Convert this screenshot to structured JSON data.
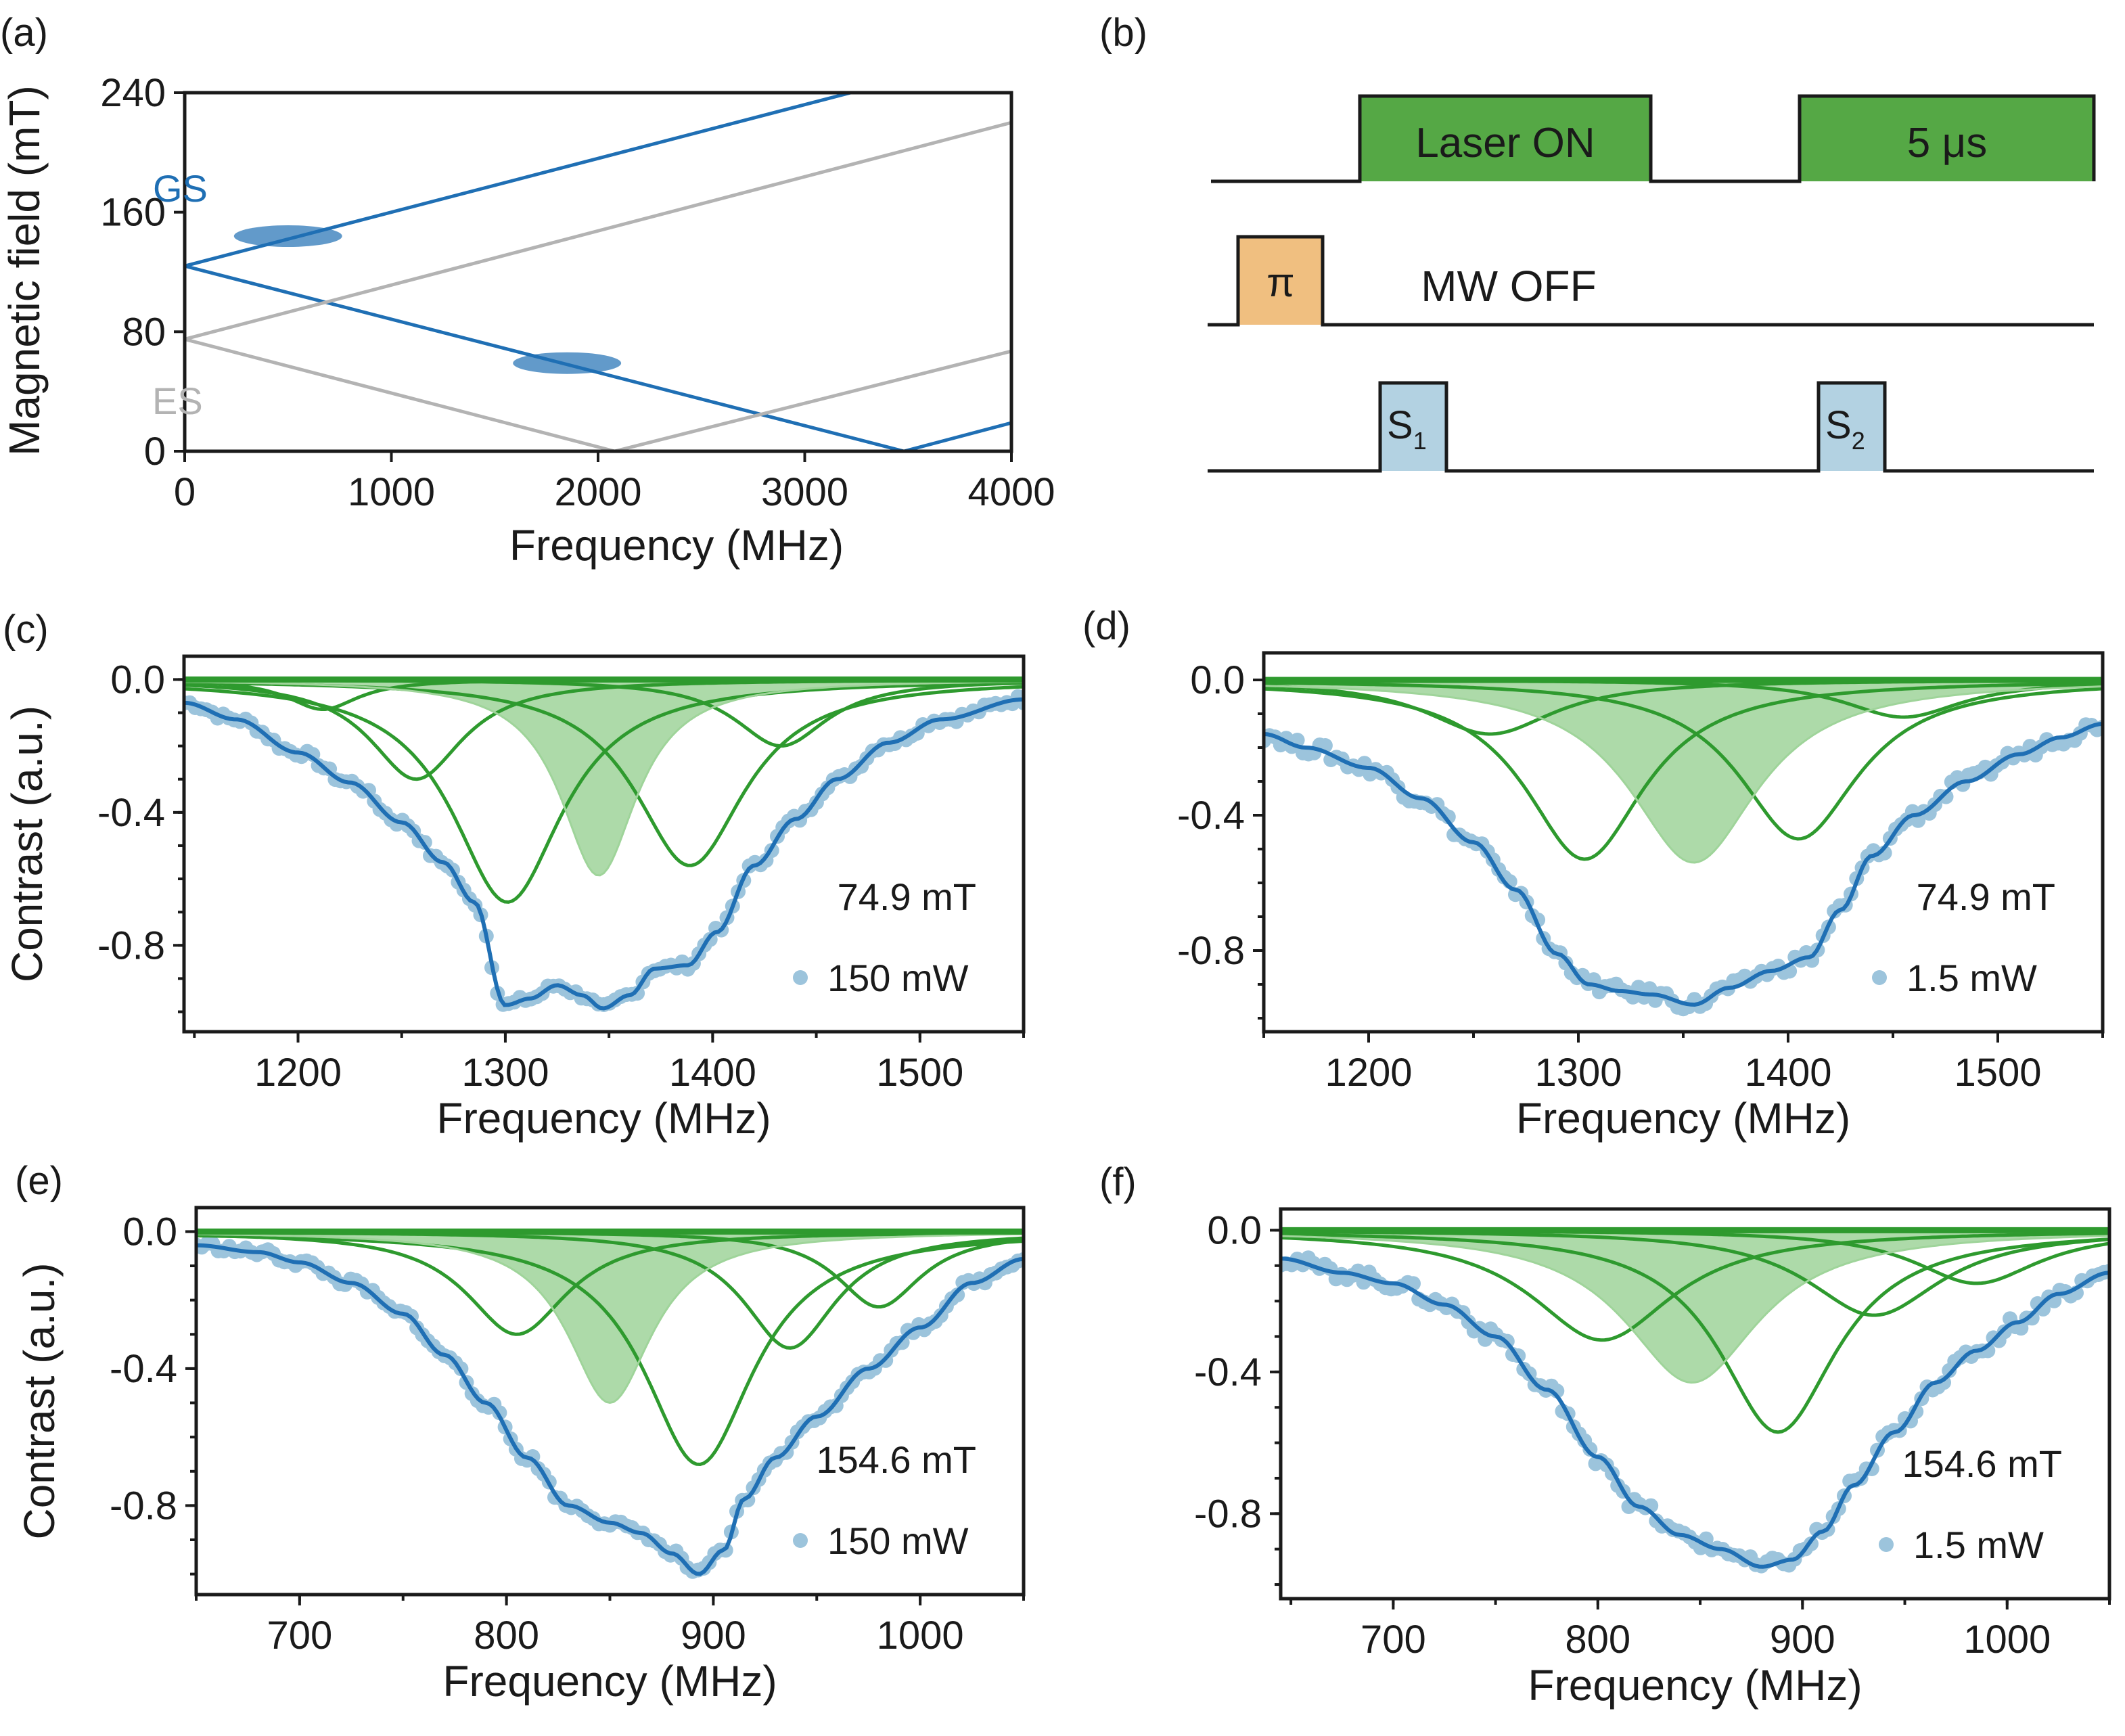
{
  "colors": {
    "blue": "#1f6fb4",
    "gray": "#b3b3b3",
    "green": "#2e9a2e",
    "green_fill": "#9fd49a",
    "laser": "#55a845",
    "pi_pulse": "#f0bf80",
    "sample": "#b3d2e2",
    "scatter": "#9cc4dc"
  },
  "panel_a": {
    "label": "(a)",
    "xlabel": "Frequency (MHz)",
    "ylabel": "Magnetic field (mT)",
    "gs_label": "GS",
    "es_label": "ES"
  },
  "panel_b": {
    "label": "(b)",
    "laser_on": "Laser ON",
    "laser_dur": "5 μs",
    "pi": "π",
    "mw_off": "MW OFF",
    "s1": "S",
    "s1_sub": "1",
    "s2": "S",
    "s2_sub": "2"
  },
  "chart_data": [
    {
      "panel": "a",
      "type": "line",
      "xlabel": "Frequency (MHz)",
      "ylabel": "Magnetic field (mT)",
      "xlim": [
        0,
        4000
      ],
      "ylim": [
        0,
        240
      ],
      "xticks": [
        0,
        1000,
        2000,
        3000,
        4000
      ],
      "yticks": [
        0,
        80,
        160,
        240
      ],
      "series": [
        {
          "name": "GS upper",
          "group": "GS",
          "x": [
            0,
            3500
          ],
          "y": [
            124,
            250
          ]
        },
        {
          "name": "GS lower",
          "group": "GS",
          "x": [
            0,
            3480
          ],
          "y": [
            124,
            0
          ]
        },
        {
          "name": "GS rising",
          "group": "GS",
          "x": [
            3480,
            4000
          ],
          "y": [
            0,
            19
          ]
        },
        {
          "name": "ES upper",
          "group": "ES",
          "x": [
            0,
            4000
          ],
          "y": [
            75,
            220
          ]
        },
        {
          "name": "ES lower",
          "group": "ES",
          "x": [
            0,
            2080
          ],
          "y": [
            75,
            0
          ]
        },
        {
          "name": "ES rising",
          "group": "ES",
          "x": [
            2080,
            4000
          ],
          "y": [
            0,
            67
          ]
        }
      ],
      "highlights": [
        {
          "x": 500,
          "y": 144
        },
        {
          "x": 1850,
          "y": 59
        }
      ]
    },
    {
      "panel": "c",
      "label": "(c)",
      "type": "scatter",
      "xlabel": "Frequency (MHz)",
      "ylabel": "Contrast (a.u.)",
      "xlim": [
        1145,
        1550
      ],
      "ylim": [
        -1.06,
        0.07
      ],
      "xticks": [
        1200,
        1300,
        1400,
        1500
      ],
      "yticks": [
        0.0,
        -0.4,
        -0.8
      ],
      "ytick_labels": [
        "0.0",
        "-0.4",
        "-0.8"
      ],
      "field": "74.9 mT",
      "legend": "150 mW",
      "filled_component": {
        "center": 1345,
        "depth": 0.59,
        "width": 45
      },
      "components": [
        {
          "center": 1212,
          "depth": 0.09,
          "width": 42
        },
        {
          "center": 1257,
          "depth": 0.3,
          "width": 55
        },
        {
          "center": 1301,
          "depth": 0.67,
          "width": 65
        },
        {
          "center": 1389,
          "depth": 0.56,
          "width": 65
        },
        {
          "center": 1433,
          "depth": 0.2,
          "width": 55
        }
      ],
      "fit_points": [
        [
          1145,
          -0.07
        ],
        [
          1170,
          -0.12
        ],
        [
          1200,
          -0.22
        ],
        [
          1225,
          -0.31
        ],
        [
          1250,
          -0.43
        ],
        [
          1270,
          -0.55
        ],
        [
          1285,
          -0.67
        ],
        [
          1300,
          -0.98
        ],
        [
          1312,
          -0.96
        ],
        [
          1325,
          -0.92
        ],
        [
          1337,
          -0.95
        ],
        [
          1347,
          -0.99
        ],
        [
          1360,
          -0.95
        ],
        [
          1372,
          -0.87
        ],
        [
          1388,
          -0.86
        ],
        [
          1402,
          -0.76
        ],
        [
          1420,
          -0.56
        ],
        [
          1440,
          -0.42
        ],
        [
          1460,
          -0.3
        ],
        [
          1485,
          -0.19
        ],
        [
          1510,
          -0.12
        ],
        [
          1550,
          -0.06
        ]
      ],
      "noise": 0.012
    },
    {
      "panel": "d",
      "label": "(d)",
      "type": "scatter",
      "xlabel": "Frequency (MHz)",
      "ylabel": "Contrast (a.u.)",
      "xlim": [
        1150,
        1550
      ],
      "ylim": [
        -1.04,
        0.08
      ],
      "xticks": [
        1200,
        1300,
        1400,
        1500
      ],
      "yticks": [
        0.0,
        -0.4,
        -0.8
      ],
      "ytick_labels": [
        "0.0",
        "-0.4",
        "-0.8"
      ],
      "field": "74.9 mT",
      "legend": "1.5 mW",
      "filled_component": {
        "center": 1355,
        "depth": 0.54,
        "width": 75
      },
      "components": [
        {
          "center": 1258,
          "depth": 0.16,
          "width": 75
        },
        {
          "center": 1303,
          "depth": 0.53,
          "width": 70
        },
        {
          "center": 1405,
          "depth": 0.47,
          "width": 70
        },
        {
          "center": 1455,
          "depth": 0.11,
          "width": 70
        }
      ],
      "fit_points": [
        [
          1150,
          -0.16
        ],
        [
          1170,
          -0.2
        ],
        [
          1200,
          -0.26
        ],
        [
          1225,
          -0.35
        ],
        [
          1250,
          -0.48
        ],
        [
          1270,
          -0.62
        ],
        [
          1290,
          -0.81
        ],
        [
          1305,
          -0.9
        ],
        [
          1320,
          -0.92
        ],
        [
          1335,
          -0.93
        ],
        [
          1355,
          -0.96
        ],
        [
          1372,
          -0.91
        ],
        [
          1392,
          -0.86
        ],
        [
          1410,
          -0.82
        ],
        [
          1425,
          -0.68
        ],
        [
          1440,
          -0.52
        ],
        [
          1460,
          -0.4
        ],
        [
          1485,
          -0.3
        ],
        [
          1510,
          -0.22
        ],
        [
          1530,
          -0.17
        ],
        [
          1550,
          -0.13
        ]
      ],
      "noise": 0.02
    },
    {
      "panel": "e",
      "label": "(e)",
      "type": "scatter",
      "xlabel": "Frequency (MHz)",
      "ylabel": "Contrast (a.u.)",
      "xlim": [
        650,
        1050
      ],
      "ylim": [
        -1.06,
        0.07
      ],
      "xticks": [
        700,
        800,
        900,
        1000
      ],
      "yticks": [
        0.0,
        -0.4,
        -0.8
      ],
      "ytick_labels": [
        "0.0",
        "-0.4",
        "-0.8"
      ],
      "field": "154.6 mT",
      "legend": "150 mW",
      "filled_component": {
        "center": 850,
        "depth": 0.5,
        "width": 50
      },
      "components": [
        {
          "center": 805,
          "depth": 0.3,
          "width": 60
        },
        {
          "center": 893,
          "depth": 0.68,
          "width": 65
        },
        {
          "center": 937,
          "depth": 0.34,
          "width": 55
        },
        {
          "center": 980,
          "depth": 0.22,
          "width": 50
        }
      ],
      "fit_points": [
        [
          650,
          -0.04
        ],
        [
          680,
          -0.06
        ],
        [
          700,
          -0.09
        ],
        [
          725,
          -0.15
        ],
        [
          750,
          -0.24
        ],
        [
          770,
          -0.36
        ],
        [
          790,
          -0.5
        ],
        [
          810,
          -0.66
        ],
        [
          830,
          -0.8
        ],
        [
          850,
          -0.85
        ],
        [
          865,
          -0.88
        ],
        [
          880,
          -0.94
        ],
        [
          893,
          -1.0
        ],
        [
          905,
          -0.93
        ],
        [
          915,
          -0.78
        ],
        [
          930,
          -0.66
        ],
        [
          950,
          -0.54
        ],
        [
          975,
          -0.4
        ],
        [
          1000,
          -0.28
        ],
        [
          1025,
          -0.15
        ],
        [
          1050,
          -0.08
        ]
      ],
      "noise": 0.012
    },
    {
      "panel": "f",
      "label": "(f)",
      "type": "scatter",
      "xlabel": "Frequency (MHz)",
      "ylabel": "Contrast (a.u.)",
      "xlim": [
        645,
        1050
      ],
      "ylim": [
        -1.04,
        0.06
      ],
      "xticks": [
        700,
        800,
        900,
        1000
      ],
      "yticks": [
        0.0,
        -0.4,
        -0.8
      ],
      "ytick_labels": [
        "0.0",
        "-0.4",
        "-0.8"
      ],
      "field": "154.6 mT",
      "legend": "1.5 mW",
      "filled_component": {
        "center": 846,
        "depth": 0.43,
        "width": 80
      },
      "components": [
        {
          "center": 802,
          "depth": 0.31,
          "width": 85
        },
        {
          "center": 888,
          "depth": 0.57,
          "width": 70
        },
        {
          "center": 935,
          "depth": 0.24,
          "width": 80
        },
        {
          "center": 985,
          "depth": 0.15,
          "width": 75
        }
      ],
      "fit_points": [
        [
          645,
          -0.08
        ],
        [
          675,
          -0.12
        ],
        [
          700,
          -0.15
        ],
        [
          725,
          -0.21
        ],
        [
          750,
          -0.3
        ],
        [
          775,
          -0.45
        ],
        [
          800,
          -0.64
        ],
        [
          820,
          -0.78
        ],
        [
          840,
          -0.86
        ],
        [
          860,
          -0.9
        ],
        [
          880,
          -0.95
        ],
        [
          895,
          -0.93
        ],
        [
          910,
          -0.85
        ],
        [
          925,
          -0.72
        ],
        [
          945,
          -0.57
        ],
        [
          965,
          -0.43
        ],
        [
          985,
          -0.34
        ],
        [
          1005,
          -0.26
        ],
        [
          1025,
          -0.18
        ],
        [
          1050,
          -0.12
        ]
      ],
      "noise": 0.02
    }
  ]
}
